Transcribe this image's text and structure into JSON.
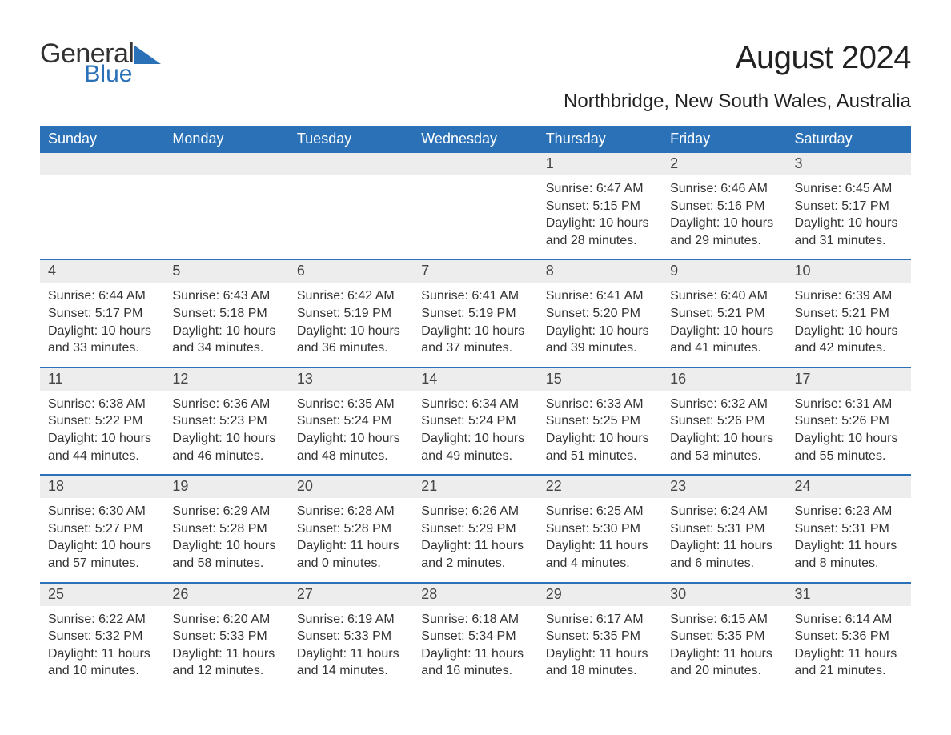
{
  "brand": {
    "part1": "General",
    "part2": "Blue",
    "accent_color": "#2a71b8"
  },
  "title": "August 2024",
  "location": "Northbridge, New South Wales, Australia",
  "colors": {
    "header_bg": "#2a71b8",
    "header_text": "#ffffff",
    "daynum_bg": "#ededed",
    "text": "#333333",
    "row_divider": "#2a71b8",
    "page_bg": "#ffffff"
  },
  "typography": {
    "title_fontsize": 40,
    "location_fontsize": 24,
    "dayheader_fontsize": 18,
    "daynum_fontsize": 18,
    "body_fontsize": 16
  },
  "day_headers": [
    "Sunday",
    "Monday",
    "Tuesday",
    "Wednesday",
    "Thursday",
    "Friday",
    "Saturday"
  ],
  "weeks": [
    [
      null,
      null,
      null,
      null,
      {
        "n": "1",
        "sunrise": "Sunrise: 6:47 AM",
        "sunset": "Sunset: 5:15 PM",
        "daylight": "Daylight: 10 hours and 28 minutes."
      },
      {
        "n": "2",
        "sunrise": "Sunrise: 6:46 AM",
        "sunset": "Sunset: 5:16 PM",
        "daylight": "Daylight: 10 hours and 29 minutes."
      },
      {
        "n": "3",
        "sunrise": "Sunrise: 6:45 AM",
        "sunset": "Sunset: 5:17 PM",
        "daylight": "Daylight: 10 hours and 31 minutes."
      }
    ],
    [
      {
        "n": "4",
        "sunrise": "Sunrise: 6:44 AM",
        "sunset": "Sunset: 5:17 PM",
        "daylight": "Daylight: 10 hours and 33 minutes."
      },
      {
        "n": "5",
        "sunrise": "Sunrise: 6:43 AM",
        "sunset": "Sunset: 5:18 PM",
        "daylight": "Daylight: 10 hours and 34 minutes."
      },
      {
        "n": "6",
        "sunrise": "Sunrise: 6:42 AM",
        "sunset": "Sunset: 5:19 PM",
        "daylight": "Daylight: 10 hours and 36 minutes."
      },
      {
        "n": "7",
        "sunrise": "Sunrise: 6:41 AM",
        "sunset": "Sunset: 5:19 PM",
        "daylight": "Daylight: 10 hours and 37 minutes."
      },
      {
        "n": "8",
        "sunrise": "Sunrise: 6:41 AM",
        "sunset": "Sunset: 5:20 PM",
        "daylight": "Daylight: 10 hours and 39 minutes."
      },
      {
        "n": "9",
        "sunrise": "Sunrise: 6:40 AM",
        "sunset": "Sunset: 5:21 PM",
        "daylight": "Daylight: 10 hours and 41 minutes."
      },
      {
        "n": "10",
        "sunrise": "Sunrise: 6:39 AM",
        "sunset": "Sunset: 5:21 PM",
        "daylight": "Daylight: 10 hours and 42 minutes."
      }
    ],
    [
      {
        "n": "11",
        "sunrise": "Sunrise: 6:38 AM",
        "sunset": "Sunset: 5:22 PM",
        "daylight": "Daylight: 10 hours and 44 minutes."
      },
      {
        "n": "12",
        "sunrise": "Sunrise: 6:36 AM",
        "sunset": "Sunset: 5:23 PM",
        "daylight": "Daylight: 10 hours and 46 minutes."
      },
      {
        "n": "13",
        "sunrise": "Sunrise: 6:35 AM",
        "sunset": "Sunset: 5:24 PM",
        "daylight": "Daylight: 10 hours and 48 minutes."
      },
      {
        "n": "14",
        "sunrise": "Sunrise: 6:34 AM",
        "sunset": "Sunset: 5:24 PM",
        "daylight": "Daylight: 10 hours and 49 minutes."
      },
      {
        "n": "15",
        "sunrise": "Sunrise: 6:33 AM",
        "sunset": "Sunset: 5:25 PM",
        "daylight": "Daylight: 10 hours and 51 minutes."
      },
      {
        "n": "16",
        "sunrise": "Sunrise: 6:32 AM",
        "sunset": "Sunset: 5:26 PM",
        "daylight": "Daylight: 10 hours and 53 minutes."
      },
      {
        "n": "17",
        "sunrise": "Sunrise: 6:31 AM",
        "sunset": "Sunset: 5:26 PM",
        "daylight": "Daylight: 10 hours and 55 minutes."
      }
    ],
    [
      {
        "n": "18",
        "sunrise": "Sunrise: 6:30 AM",
        "sunset": "Sunset: 5:27 PM",
        "daylight": "Daylight: 10 hours and 57 minutes."
      },
      {
        "n": "19",
        "sunrise": "Sunrise: 6:29 AM",
        "sunset": "Sunset: 5:28 PM",
        "daylight": "Daylight: 10 hours and 58 minutes."
      },
      {
        "n": "20",
        "sunrise": "Sunrise: 6:28 AM",
        "sunset": "Sunset: 5:28 PM",
        "daylight": "Daylight: 11 hours and 0 minutes."
      },
      {
        "n": "21",
        "sunrise": "Sunrise: 6:26 AM",
        "sunset": "Sunset: 5:29 PM",
        "daylight": "Daylight: 11 hours and 2 minutes."
      },
      {
        "n": "22",
        "sunrise": "Sunrise: 6:25 AM",
        "sunset": "Sunset: 5:30 PM",
        "daylight": "Daylight: 11 hours and 4 minutes."
      },
      {
        "n": "23",
        "sunrise": "Sunrise: 6:24 AM",
        "sunset": "Sunset: 5:31 PM",
        "daylight": "Daylight: 11 hours and 6 minutes."
      },
      {
        "n": "24",
        "sunrise": "Sunrise: 6:23 AM",
        "sunset": "Sunset: 5:31 PM",
        "daylight": "Daylight: 11 hours and 8 minutes."
      }
    ],
    [
      {
        "n": "25",
        "sunrise": "Sunrise: 6:22 AM",
        "sunset": "Sunset: 5:32 PM",
        "daylight": "Daylight: 11 hours and 10 minutes."
      },
      {
        "n": "26",
        "sunrise": "Sunrise: 6:20 AM",
        "sunset": "Sunset: 5:33 PM",
        "daylight": "Daylight: 11 hours and 12 minutes."
      },
      {
        "n": "27",
        "sunrise": "Sunrise: 6:19 AM",
        "sunset": "Sunset: 5:33 PM",
        "daylight": "Daylight: 11 hours and 14 minutes."
      },
      {
        "n": "28",
        "sunrise": "Sunrise: 6:18 AM",
        "sunset": "Sunset: 5:34 PM",
        "daylight": "Daylight: 11 hours and 16 minutes."
      },
      {
        "n": "29",
        "sunrise": "Sunrise: 6:17 AM",
        "sunset": "Sunset: 5:35 PM",
        "daylight": "Daylight: 11 hours and 18 minutes."
      },
      {
        "n": "30",
        "sunrise": "Sunrise: 6:15 AM",
        "sunset": "Sunset: 5:35 PM",
        "daylight": "Daylight: 11 hours and 20 minutes."
      },
      {
        "n": "31",
        "sunrise": "Sunrise: 6:14 AM",
        "sunset": "Sunset: 5:36 PM",
        "daylight": "Daylight: 11 hours and 21 minutes."
      }
    ]
  ]
}
